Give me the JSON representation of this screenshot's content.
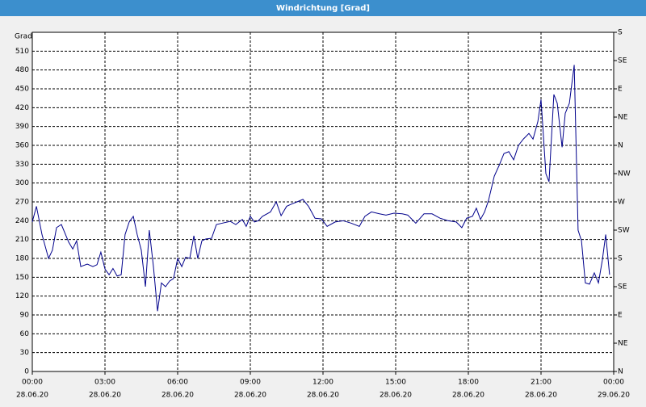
{
  "chart_data": {
    "type": "line",
    "title": "Windrichtung [Grad]",
    "ylabel": "Grad",
    "x": [
      0,
      0.17,
      0.4,
      0.67,
      0.83,
      1.0,
      1.2,
      1.5,
      1.67,
      1.83,
      2.0,
      2.27,
      2.5,
      2.67,
      2.83,
      3.0,
      3.17,
      3.33,
      3.5,
      3.67,
      3.83,
      4.0,
      4.17,
      4.33,
      4.5,
      4.67,
      4.83,
      5.0,
      5.17,
      5.33,
      5.5,
      5.67,
      5.83,
      6.0,
      6.17,
      6.33,
      6.5,
      6.67,
      6.83,
      7.0,
      7.17,
      7.4,
      7.6,
      7.83,
      8.17,
      8.4,
      8.67,
      8.83,
      9.0,
      9.17,
      9.33,
      9.5,
      9.83,
      10.07,
      10.27,
      10.5,
      10.73,
      10.93,
      11.17,
      11.4,
      11.67,
      11.93,
      12.17,
      12.5,
      12.83,
      13.17,
      13.5,
      13.73,
      14.0,
      14.33,
      14.6,
      14.93,
      15.27,
      15.5,
      15.83,
      16.17,
      16.5,
      16.83,
      17.17,
      17.5,
      17.73,
      17.93,
      18.17,
      18.33,
      18.5,
      18.67,
      18.83,
      19.07,
      19.27,
      19.47,
      19.67,
      19.87,
      20.07,
      20.27,
      20.5,
      20.67,
      20.87,
      21.0,
      21.2,
      21.33,
      21.53,
      21.67,
      21.87,
      22.0,
      22.17,
      22.37,
      22.53,
      22.67,
      22.83,
      23.0,
      23.2,
      23.37,
      23.53,
      23.67,
      23.83
    ],
    "values": [
      238,
      263,
      218,
      180,
      193,
      229,
      234,
      206,
      195,
      208,
      167,
      171,
      167,
      170,
      190,
      163,
      154,
      164,
      152,
      154,
      218,
      238,
      247,
      218,
      193,
      135,
      225,
      167,
      96,
      141,
      135,
      144,
      148,
      180,
      167,
      182,
      180,
      216,
      180,
      208,
      211,
      212,
      234,
      236,
      239,
      234,
      242,
      231,
      247,
      238,
      240,
      247,
      254,
      270,
      248,
      263,
      267,
      270,
      274,
      263,
      244,
      243,
      231,
      238,
      240,
      236,
      231,
      247,
      254,
      251,
      249,
      252,
      251,
      249,
      236,
      251,
      251,
      244,
      240,
      238,
      229,
      244,
      247,
      260,
      242,
      254,
      272,
      311,
      328,
      347,
      350,
      337,
      360,
      370,
      379,
      370,
      398,
      433,
      315,
      302,
      441,
      427,
      357,
      411,
      427,
      488,
      225,
      208,
      141,
      139,
      157,
      141,
      177,
      218,
      154
    ],
    "color": "#00008b",
    "xlim": [
      0,
      24
    ],
    "xticks": [
      {
        "value": 0,
        "label": "00:00"
      },
      {
        "value": 3,
        "label": "03:00"
      },
      {
        "value": 6,
        "label": "06:00"
      },
      {
        "value": 9,
        "label": "09:00"
      },
      {
        "value": 12,
        "label": "12:00"
      },
      {
        "value": 15,
        "label": "15:00"
      },
      {
        "value": 18,
        "label": "18:00"
      },
      {
        "value": 21,
        "label": "21:00"
      },
      {
        "value": 24,
        "label": "00:00"
      }
    ],
    "xtick_dates": [
      "28.06.20",
      "28.06.20",
      "28.06.20",
      "28.06.20",
      "28.06.20",
      "28.06.20",
      "28.06.20",
      "28.06.20",
      "29.06.20"
    ],
    "ylim": [
      0,
      540
    ],
    "yticks": [
      0,
      30,
      60,
      90,
      120,
      150,
      180,
      210,
      240,
      270,
      300,
      330,
      360,
      390,
      420,
      450,
      480,
      510
    ],
    "y2lim": [
      0,
      540
    ],
    "y2ticks": [
      {
        "value": 0,
        "label": "N"
      },
      {
        "value": 45,
        "label": "NE"
      },
      {
        "value": 90,
        "label": "E"
      },
      {
        "value": 135,
        "label": "SE"
      },
      {
        "value": 180,
        "label": "S"
      },
      {
        "value": 225,
        "label": "SW"
      },
      {
        "value": 270,
        "label": "W"
      },
      {
        "value": 315,
        "label": "NW"
      },
      {
        "value": 360,
        "label": "N"
      },
      {
        "value": 405,
        "label": "NE"
      },
      {
        "value": 450,
        "label": "E"
      },
      {
        "value": 495,
        "label": "SE"
      },
      {
        "value": 540,
        "label": "S"
      }
    ],
    "grid": true
  }
}
